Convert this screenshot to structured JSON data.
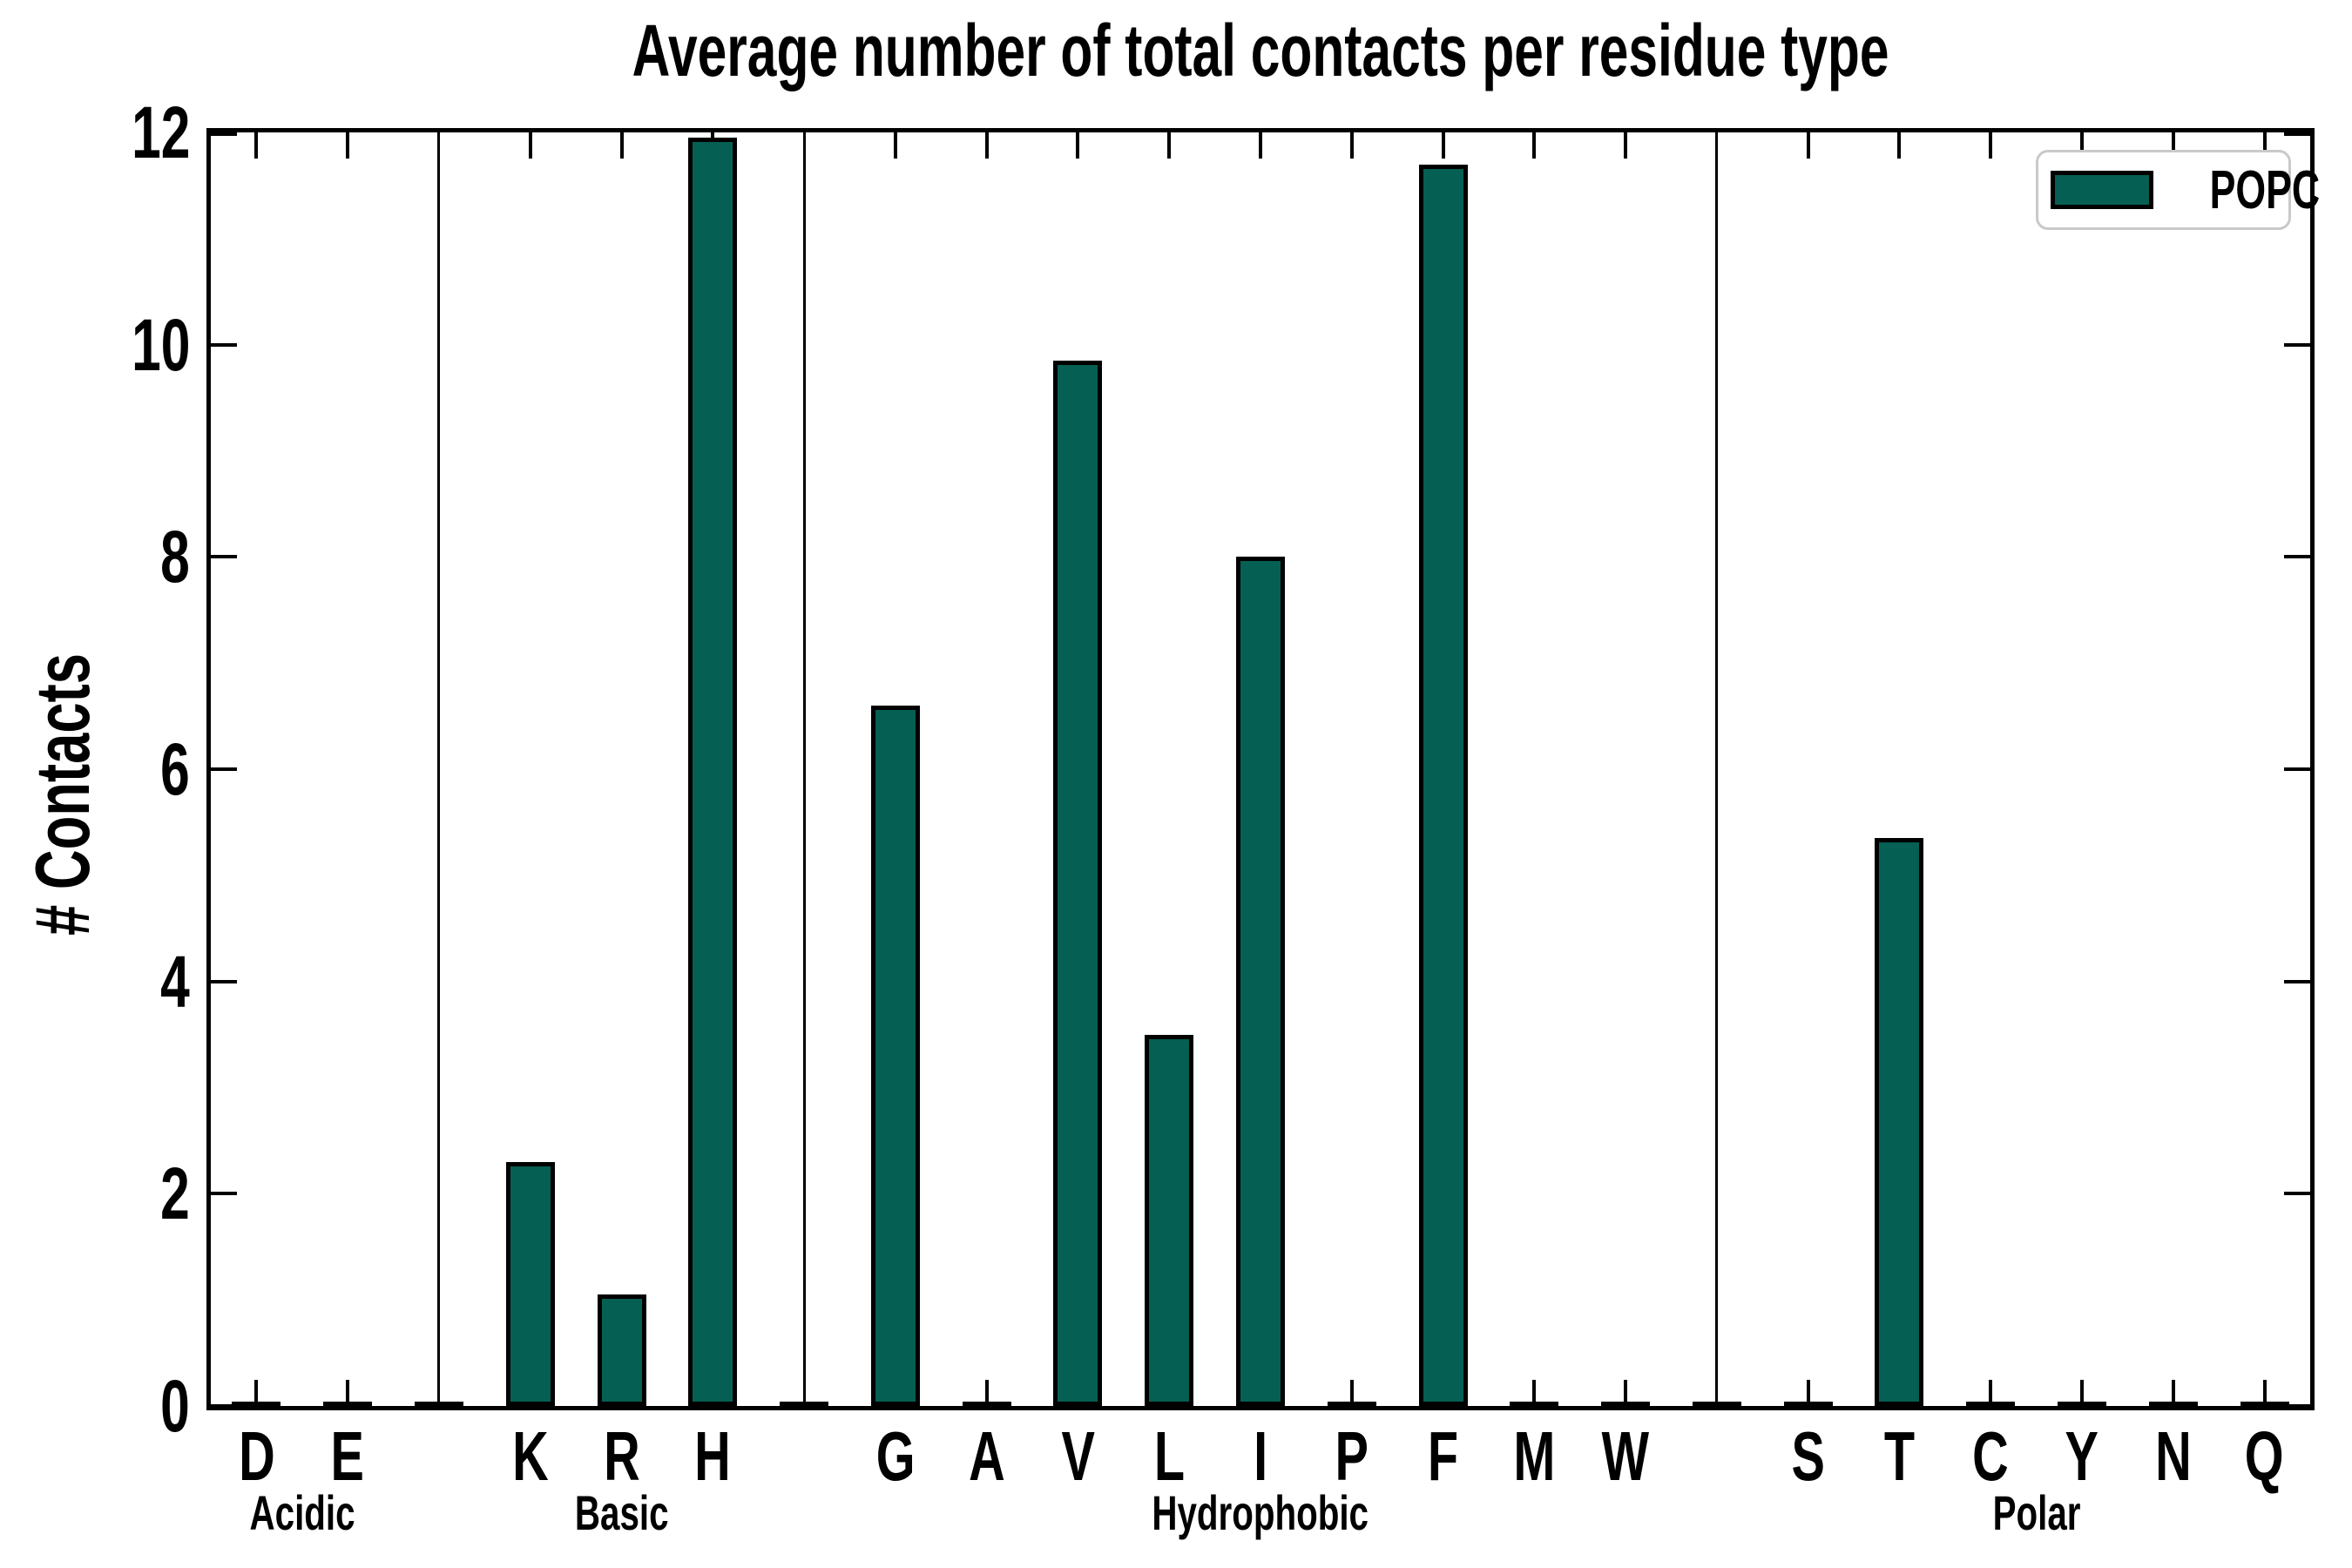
{
  "figure": {
    "title": "Average number of total contacts per residue type",
    "ylabel": "# Contacts"
  },
  "legend": {
    "label": "POPC"
  },
  "colors": {
    "bar_fill": "#065f53",
    "bar_edge": "#000000",
    "axis": "#000000",
    "legend_border": "#c9c9c9",
    "background": "#ffffff"
  },
  "chart_data": {
    "type": "bar",
    "title": "Average number of total contacts per residue type",
    "xlabel": "",
    "ylabel": "# Contacts",
    "ylim": [
      0,
      12
    ],
    "yticks": [
      0,
      2,
      4,
      6,
      8,
      10,
      12
    ],
    "legend_entries": [
      "POPC"
    ],
    "legend_position": "upper right",
    "grid": false,
    "group_separators": true,
    "groups": [
      {
        "label": "Acidic",
        "categories": [
          "D",
          "E"
        ],
        "values": [
          0,
          0
        ]
      },
      {
        "label": "Basic",
        "categories": [
          "K",
          "R",
          "H"
        ],
        "values": [
          2.3,
          1.05,
          11.95
        ]
      },
      {
        "label": "Hydrophobic",
        "categories": [
          "G",
          "A",
          "V",
          "L",
          "I",
          "P",
          "F",
          "M",
          "W"
        ],
        "values": [
          6.6,
          0,
          9.85,
          3.5,
          8.0,
          0,
          11.7,
          0,
          0
        ]
      },
      {
        "label": "Polar",
        "categories": [
          "S",
          "T",
          "C",
          "Y",
          "N",
          "Q"
        ],
        "values": [
          0,
          5.35,
          0,
          0,
          0,
          0
        ]
      }
    ]
  }
}
